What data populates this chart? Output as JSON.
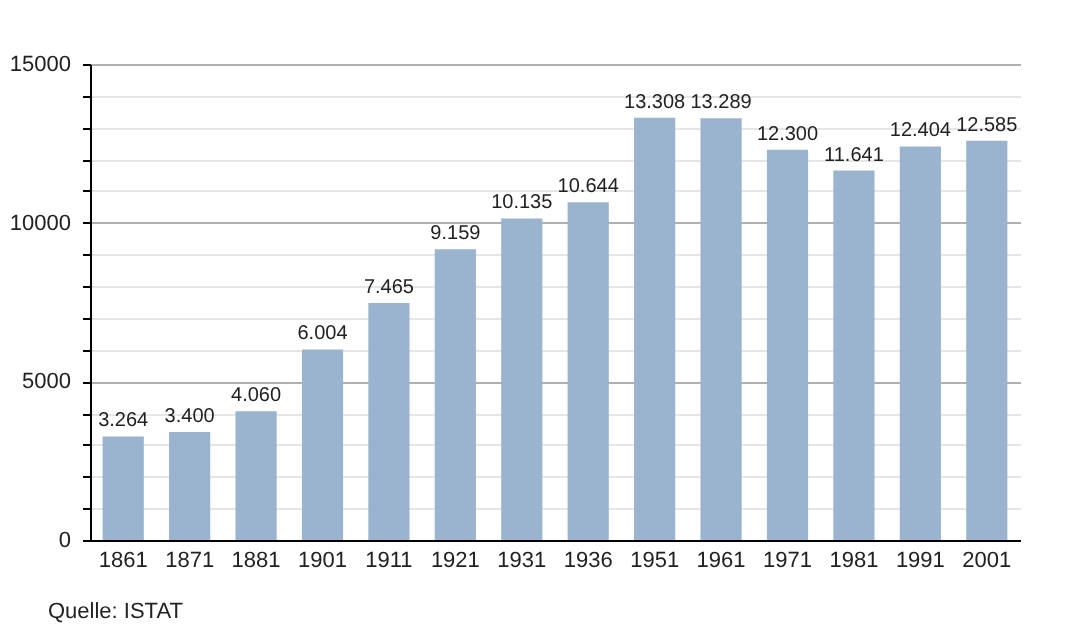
{
  "chart_data": {
    "type": "bar",
    "categories": [
      "1861",
      "1871",
      "1881",
      "1901",
      "1911",
      "1921",
      "1931",
      "1936",
      "1951",
      "1961",
      "1971",
      "1981",
      "1991",
      "2001"
    ],
    "values": [
      3264,
      3400,
      4060,
      6004,
      7465,
      9159,
      10135,
      10644,
      13308,
      13289,
      12300,
      11641,
      12404,
      12585
    ],
    "value_labels": [
      "3.264",
      "3.400",
      "4.060",
      "6.004",
      "7.465",
      "9.159",
      "10.135",
      "10.644",
      "13.308",
      "13.289",
      "12.300",
      "11.641",
      "12.404",
      "12.585"
    ],
    "color": "#9ab3cf",
    "ylim": [
      0,
      15000
    ],
    "yticks": [
      0,
      {
        "value": 1000,
        "label": null
      },
      {
        "value": 2000,
        "label": null
      },
      {
        "value": 3000,
        "label": null
      },
      {
        "value": 4000,
        "label": null
      },
      5000,
      {
        "value": 6000,
        "label": null
      },
      {
        "value": 7000,
        "label": null
      },
      {
        "value": 8000,
        "label": null
      },
      {
        "value": 9000,
        "label": null
      },
      10000,
      {
        "value": 11000,
        "label": null
      },
      {
        "value": 12000,
        "label": null
      },
      {
        "value": 13000,
        "label": null
      },
      {
        "value": 14000,
        "label": null
      },
      15000
    ],
    "grid": true,
    "annotations": [
      "Quelle: ISTAT"
    ]
  }
}
